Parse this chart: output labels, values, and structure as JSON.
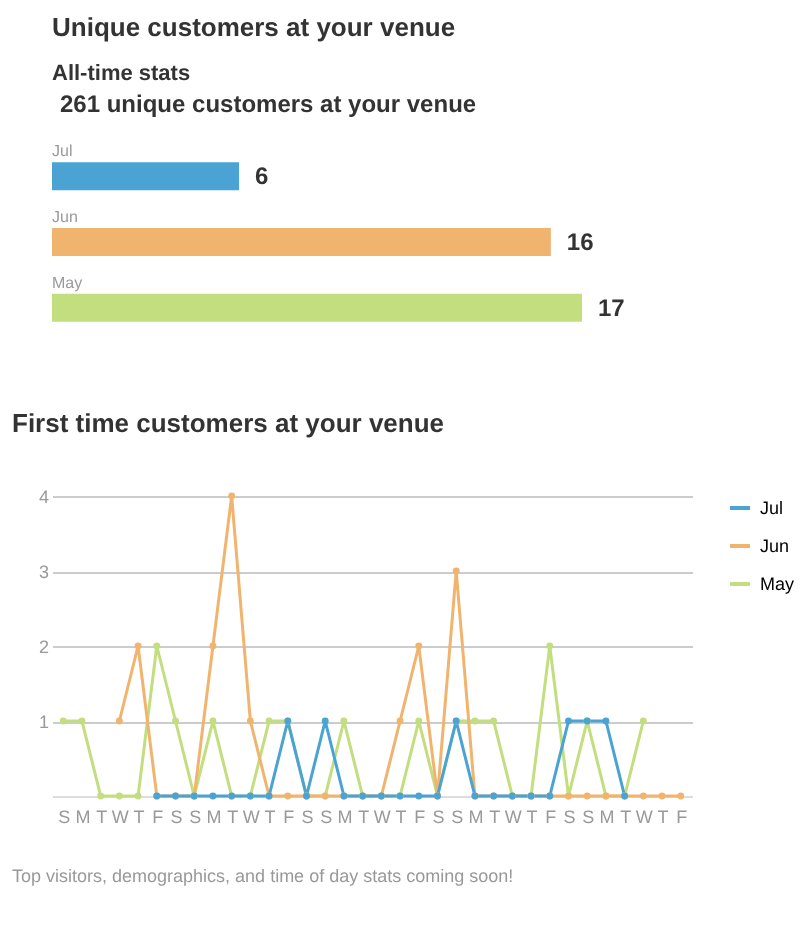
{
  "chart_data": [
    {
      "type": "bar",
      "title": "Unique customers at your venue",
      "subtitle": "All-time stats",
      "annotations": [
        "261 unique customers at your venue"
      ],
      "orientation": "horizontal",
      "categories": [
        "Jul",
        "Jun",
        "May"
      ],
      "values": [
        6,
        16,
        17
      ],
      "colors": [
        "#4ba3d3",
        "#f0b46e",
        "#c3de7f"
      ],
      "data_labels": true,
      "tick_labels": false
    },
    {
      "type": "line",
      "title": "First time customers at your venue",
      "annotations": [
        "Top visitors, demographics, and time of day stats coming soon!"
      ],
      "categories": [
        "S",
        "M",
        "T",
        "W",
        "T",
        "F",
        "S",
        "S",
        "M",
        "T",
        "W",
        "T",
        "F",
        "S",
        "S",
        "M",
        "T",
        "W",
        "T",
        "F",
        "S",
        "S",
        "M",
        "T",
        "W",
        "T",
        "F",
        "S",
        "S",
        "M",
        "T",
        "W",
        "T",
        "F"
      ],
      "ylim": [
        0,
        4
      ],
      "yticks": [
        1,
        2,
        3,
        4
      ],
      "grid": "y",
      "legend": "right",
      "marker": "circle",
      "line_style": "solid",
      "series": [
        {
          "name": "Jul",
          "color": "#4ba3d3",
          "values": [
            null,
            null,
            null,
            null,
            null,
            0,
            0,
            0,
            0,
            0,
            0,
            0,
            1,
            0,
            1,
            0,
            0,
            0,
            0,
            0,
            0,
            1,
            0,
            0,
            0,
            0,
            0,
            1,
            1,
            1,
            0,
            null,
            null,
            null
          ]
        },
        {
          "name": "Jun",
          "color": "#f0b46e",
          "values": [
            null,
            null,
            null,
            1,
            2,
            0,
            0,
            0,
            2,
            4,
            1,
            0,
            0,
            0,
            0,
            0,
            0,
            0,
            1,
            2,
            0,
            3,
            0,
            0,
            0,
            0,
            0,
            0,
            0,
            0,
            0,
            0,
            0,
            0
          ]
        },
        {
          "name": "May",
          "color": "#c3de7f",
          "values": [
            1,
            1,
            0,
            0,
            0,
            2,
            1,
            0,
            1,
            0,
            0,
            1,
            1,
            0,
            0,
            1,
            0,
            0,
            0,
            1,
            0,
            1,
            1,
            1,
            0,
            0,
            2,
            0,
            1,
            0,
            0,
            1,
            null,
            null
          ]
        }
      ]
    }
  ]
}
